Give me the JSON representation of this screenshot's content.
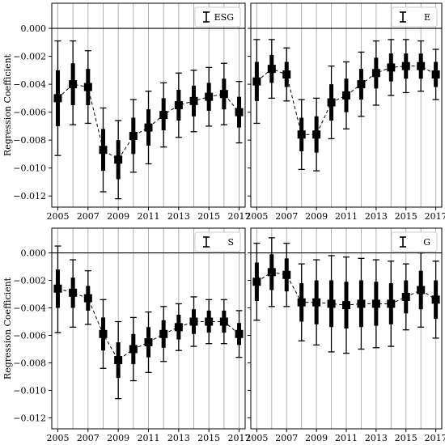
{
  "chart_data": [
    {
      "type": "errorbar",
      "panel": "ESG",
      "legend": "ESG",
      "legend_position": "top-right",
      "ylabel": "Regression Coefficient",
      "x": [
        2005,
        2006,
        2007,
        2008,
        2009,
        2010,
        2011,
        2012,
        2013,
        2014,
        2015,
        2016,
        2017
      ],
      "y": [
        -0.005,
        -0.004,
        -0.0042,
        -0.0087,
        -0.0094,
        -0.0077,
        -0.0071,
        -0.0062,
        -0.0055,
        -0.0052,
        -0.0049,
        -0.0047,
        -0.006
      ],
      "ci95": [
        [
          -0.0091,
          -0.0009
        ],
        [
          -0.0069,
          -0.0009
        ],
        [
          -0.0068,
          -0.0016
        ],
        [
          -0.0117,
          -0.0057
        ],
        [
          -0.0122,
          -0.0066
        ],
        [
          -0.0103,
          -0.0051
        ],
        [
          -0.0097,
          -0.0045
        ],
        [
          -0.0085,
          -0.0039
        ],
        [
          -0.0078,
          -0.0032
        ],
        [
          -0.0074,
          -0.003
        ],
        [
          -0.007,
          -0.0028
        ],
        [
          -0.0069,
          -0.0025
        ],
        [
          -0.0082,
          -0.0038
        ]
      ],
      "ci_inner": [
        [
          -0.007,
          -0.003
        ],
        [
          -0.0055,
          -0.0025
        ],
        [
          -0.0055,
          -0.0029
        ],
        [
          -0.0102,
          -0.0072
        ],
        [
          -0.0108,
          -0.008
        ],
        [
          -0.009,
          -0.0064
        ],
        [
          -0.0084,
          -0.0058
        ],
        [
          -0.0073,
          -0.005
        ],
        [
          -0.0066,
          -0.0044
        ],
        [
          -0.0063,
          -0.0041
        ],
        [
          -0.0059,
          -0.0039
        ],
        [
          -0.0058,
          -0.0036
        ],
        [
          -0.0071,
          -0.0049
        ]
      ]
    },
    {
      "type": "errorbar",
      "panel": "E",
      "legend": "E",
      "legend_position": "top-right",
      "ylabel": "",
      "x": [
        2005,
        2006,
        2007,
        2008,
        2009,
        2010,
        2011,
        2012,
        2013,
        2014,
        2015,
        2016,
        2017
      ],
      "y": [
        -0.0038,
        -0.0029,
        -0.0033,
        -0.0076,
        -0.0076,
        -0.0053,
        -0.0048,
        -0.004,
        -0.0032,
        -0.0028,
        -0.0027,
        -0.0027,
        -0.0033
      ],
      "ci95": [
        [
          -0.0068,
          -0.0008
        ],
        [
          -0.005,
          -0.0008
        ],
        [
          -0.0052,
          -0.0014
        ],
        [
          -0.0101,
          -0.0051
        ],
        [
          -0.0102,
          -0.005
        ],
        [
          -0.0079,
          -0.0027
        ],
        [
          -0.0072,
          -0.0024
        ],
        [
          -0.0063,
          -0.0017
        ],
        [
          -0.0055,
          -0.0009
        ],
        [
          -0.0048,
          -0.0008
        ],
        [
          -0.0046,
          -0.0008
        ],
        [
          -0.0045,
          -0.0009
        ],
        [
          -0.0051,
          -0.0015
        ]
      ],
      "ci_inner": [
        [
          -0.0052,
          -0.0024
        ],
        [
          -0.0039,
          -0.0019
        ],
        [
          -0.0042,
          -0.0024
        ],
        [
          -0.0088,
          -0.0064
        ],
        [
          -0.0089,
          -0.0063
        ],
        [
          -0.0066,
          -0.004
        ],
        [
          -0.006,
          -0.0036
        ],
        [
          -0.0051,
          -0.0029
        ],
        [
          -0.0043,
          -0.0021
        ],
        [
          -0.0038,
          -0.0018
        ],
        [
          -0.0036,
          -0.0018
        ],
        [
          -0.0036,
          -0.0018
        ],
        [
          -0.0042,
          -0.0024
        ]
      ]
    },
    {
      "type": "errorbar",
      "panel": "S",
      "legend": "S",
      "legend_position": "top-right",
      "ylabel": "Regression Coefficient",
      "x": [
        2005,
        2006,
        2007,
        2008,
        2009,
        2010,
        2011,
        2012,
        2013,
        2014,
        2015,
        2016,
        2017
      ],
      "y": [
        -0.0026,
        -0.0029,
        -0.0033,
        -0.0059,
        -0.0078,
        -0.007,
        -0.0065,
        -0.0059,
        -0.0054,
        -0.005,
        -0.005,
        -0.005,
        -0.0059
      ],
      "ci95": [
        [
          -0.0058,
          0.0005
        ],
        [
          -0.0054,
          -0.0005
        ],
        [
          -0.0052,
          -0.0013
        ],
        [
          -0.0084,
          -0.0034
        ],
        [
          -0.0106,
          -0.005
        ],
        [
          -0.0093,
          -0.0047
        ],
        [
          -0.0087,
          -0.0043
        ],
        [
          -0.0079,
          -0.0039
        ],
        [
          -0.0071,
          -0.0037
        ],
        [
          -0.0068,
          -0.0032
        ],
        [
          -0.0066,
          -0.0034
        ],
        [
          -0.0066,
          -0.0034
        ],
        [
          -0.0076,
          -0.0042
        ]
      ],
      "ci_inner": [
        [
          -0.004,
          -0.0012
        ],
        [
          -0.004,
          -0.0018
        ],
        [
          -0.0042,
          -0.0024
        ],
        [
          -0.0071,
          -0.0047
        ],
        [
          -0.0091,
          -0.0065
        ],
        [
          -0.0081,
          -0.0059
        ],
        [
          -0.0076,
          -0.0054
        ],
        [
          -0.0069,
          -0.0049
        ],
        [
          -0.0063,
          -0.0045
        ],
        [
          -0.0059,
          -0.0041
        ],
        [
          -0.0058,
          -0.0042
        ],
        [
          -0.0058,
          -0.0042
        ],
        [
          -0.0067,
          -0.0051
        ]
      ]
    },
    {
      "type": "errorbar",
      "panel": "G",
      "legend": "G",
      "legend_position": "top-right",
      "ylabel": "",
      "x": [
        2005,
        2006,
        2007,
        2008,
        2009,
        2010,
        2011,
        2012,
        2013,
        2014,
        2015,
        2016,
        2017
      ],
      "y": [
        -0.0021,
        -0.0014,
        -0.0016,
        -0.0036,
        -0.0036,
        -0.0037,
        -0.0038,
        -0.0037,
        -0.0037,
        -0.0037,
        -0.0032,
        -0.0027,
        -0.0034
      ],
      "ci95": [
        [
          -0.0049,
          0.0007
        ],
        [
          -0.0039,
          0.0011
        ],
        [
          -0.0039,
          0.0007
        ],
        [
          -0.0064,
          -0.0008
        ],
        [
          -0.0067,
          -0.0005
        ],
        [
          -0.0072,
          -0.0002
        ],
        [
          -0.0073,
          -0.0003
        ],
        [
          -0.007,
          -0.0004
        ],
        [
          -0.0069,
          -0.0005
        ],
        [
          -0.0068,
          -0.0006
        ],
        [
          -0.0056,
          -0.0008
        ],
        [
          -0.0054,
          0.0
        ],
        [
          -0.0062,
          -0.0006
        ]
      ],
      "ci_inner": [
        [
          -0.0035,
          -0.0007
        ],
        [
          -0.0027,
          -0.0001
        ],
        [
          -0.0028,
          -0.0004
        ],
        [
          -0.005,
          -0.0022
        ],
        [
          -0.0052,
          -0.002
        ],
        [
          -0.0054,
          -0.002
        ],
        [
          -0.0055,
          -0.0021
        ],
        [
          -0.0054,
          -0.002
        ],
        [
          -0.0053,
          -0.0021
        ],
        [
          -0.0052,
          -0.0022
        ],
        [
          -0.0044,
          -0.002
        ],
        [
          -0.0041,
          -0.0013
        ],
        [
          -0.0048,
          -0.002
        ]
      ]
    }
  ],
  "axes": {
    "ylim": [
      -0.0128,
      0.0018
    ],
    "xlim": [
      2004.6,
      2017.4
    ],
    "xticks": [
      2005,
      2007,
      2009,
      2011,
      2013,
      2015,
      2017
    ],
    "xtick_labels": [
      "2005",
      "2007",
      "2009",
      "2011",
      "2013",
      "2015",
      "2017"
    ],
    "yticks": [
      0.0,
      -0.002,
      -0.004,
      -0.006,
      -0.008,
      -0.01,
      -0.012
    ],
    "ytick_labels": [
      "0.000",
      "−0.002",
      "−0.004",
      "−0.006",
      "−0.008",
      "−0.010",
      "−0.012"
    ],
    "grid": "vertical at every year",
    "reference_line": 0.0,
    "sharey": true,
    "layout": "2x2"
  },
  "colors": {
    "marks": "#000000",
    "grid": "#b0b0b0",
    "background": "#ffffff"
  }
}
